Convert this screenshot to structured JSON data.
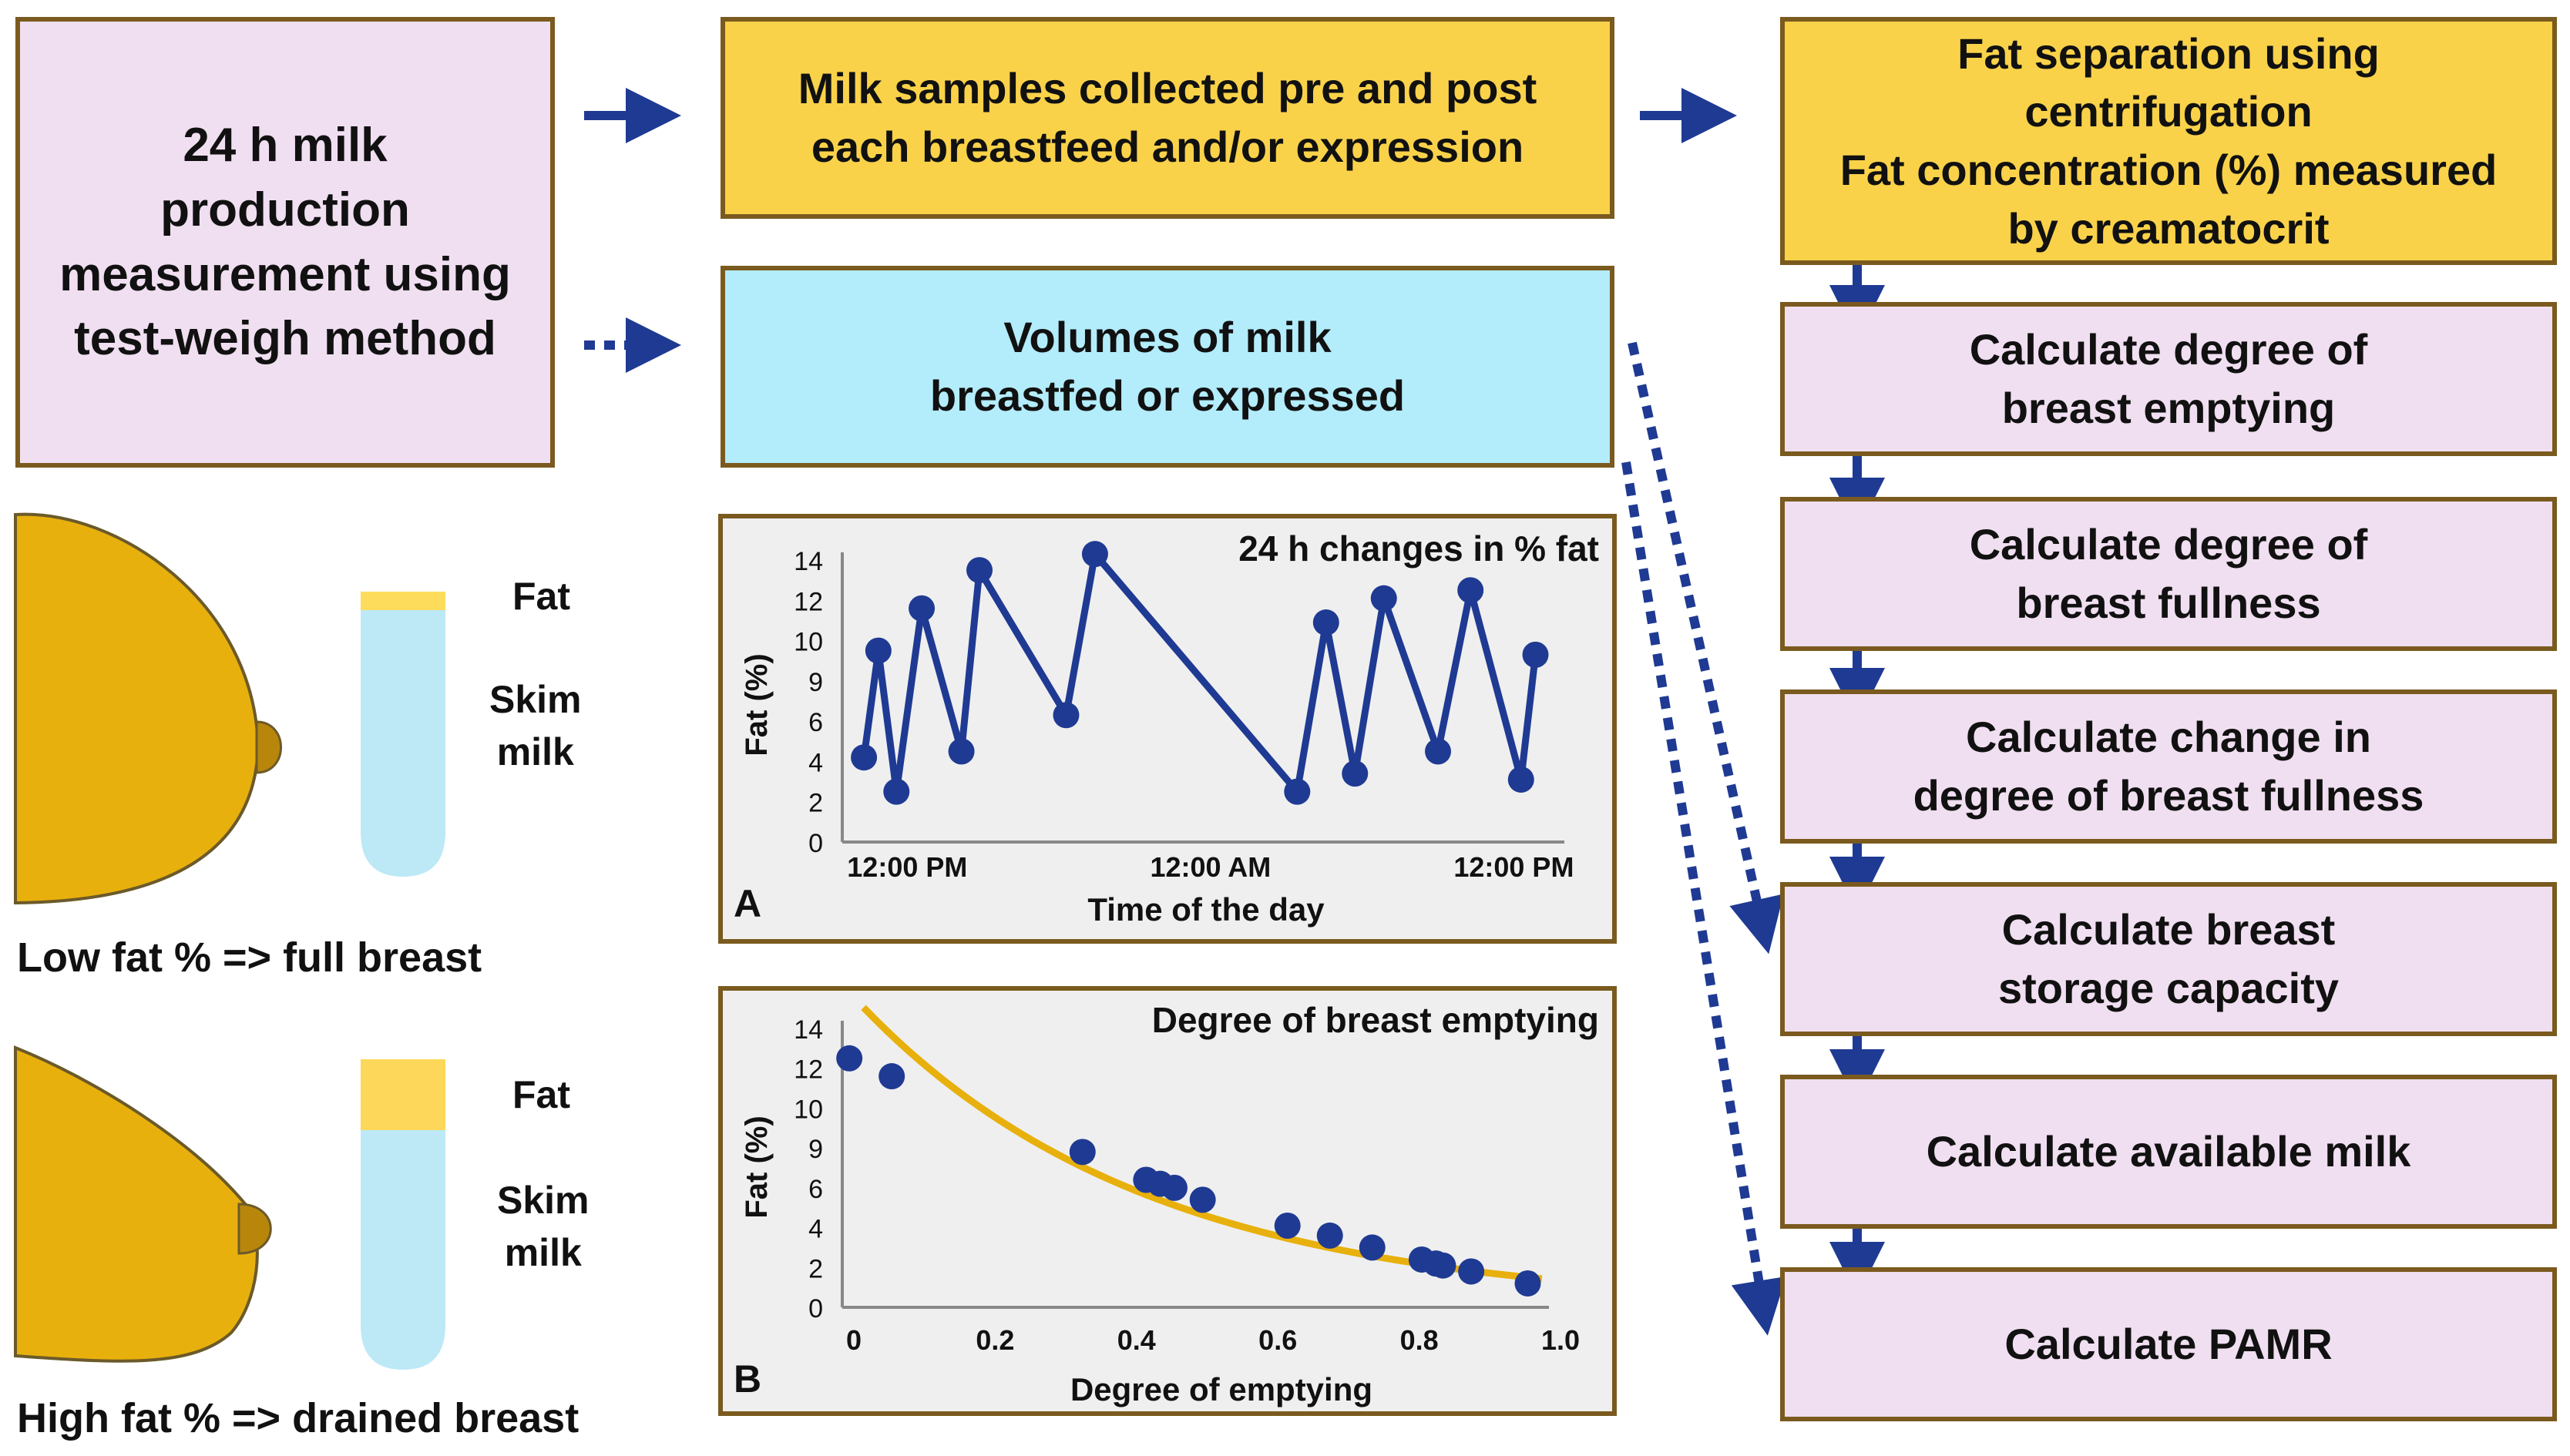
{
  "boxes": {
    "production": "24 h milk\nproduction\nmeasurement using\ntest-weigh method",
    "samples": "Milk samples collected pre and post\neach breastfeed and/or expression",
    "volumes": "Volumes of milk\nbreastfed or expressed",
    "fat_separation": "Fat separation using\ncentrifugation\nFat concentration (%) measured\nby creamatocrit"
  },
  "steps": [
    "Calculate degree of\nbreast emptying",
    "Calculate degree of\nbreast fullness",
    "Calculate change in\ndegree of breast fullness",
    "Calculate breast\nstorage capacity",
    "Calculate available milk",
    "Calculate PAMR"
  ],
  "illustrations": {
    "low": {
      "fat": "Fat",
      "skim": "Skim\nmilk",
      "caption": "Low fat % => full breast"
    },
    "high": {
      "fat": "Fat",
      "skim": "Skim\nmilk",
      "caption": "High fat % => drained breast"
    }
  },
  "colors": {
    "arrow": "#1f3a93",
    "breast": "#e8b00c",
    "nipple": "#b8860b",
    "fat_low": "#fddc5c",
    "fat_high": "#fdd75a",
    "skim": "#bde9f7"
  },
  "chart_data": [
    {
      "type": "line",
      "panel": "A",
      "title": "24 h changes in % fat",
      "xlabel": "Time of the day",
      "ylabel": "Fat (%)",
      "ylim": [
        0,
        14
      ],
      "yticks": [
        0,
        2,
        4,
        6,
        9,
        10,
        12,
        14
      ],
      "xticks": [
        "12:00 PM",
        "12:00 AM",
        "12:00 PM"
      ],
      "xlim": [
        0,
        100
      ],
      "xtick_positions": [
        9,
        51,
        93
      ],
      "x": [
        3,
        5,
        7.5,
        11,
        16.5,
        19,
        31,
        35,
        63,
        67,
        71,
        75,
        82.5,
        87,
        94,
        96
      ],
      "y": [
        4.2,
        9.5,
        2.5,
        11.6,
        4.5,
        13.5,
        6.3,
        14.3,
        2.5,
        10.9,
        3.4,
        12.1,
        4.5,
        12.5,
        3.1,
        9.3
      ]
    },
    {
      "type": "scatter",
      "panel": "B",
      "title": "Degree of breast emptying",
      "xlabel": "Degree of emptying",
      "ylabel": "Fat (%)",
      "xlim": [
        0,
        1.0
      ],
      "ylim": [
        0,
        14
      ],
      "yticks": [
        0,
        2,
        4,
        6,
        9,
        10,
        12,
        14
      ],
      "xticks": [
        "0",
        "0.2",
        "0.4",
        "0.6",
        "0.8",
        "1.0"
      ],
      "x": [
        0.01,
        0.07,
        0.34,
        0.43,
        0.45,
        0.47,
        0.51,
        0.63,
        0.69,
        0.75,
        0.82,
        0.84,
        0.85,
        0.89,
        0.97
      ],
      "y": [
        12.5,
        11.6,
        7.8,
        6.4,
        6.2,
        6.0,
        5.4,
        4.1,
        3.6,
        3.0,
        2.4,
        2.2,
        2.1,
        1.8,
        1.2
      ],
      "trend": {
        "type": "exponential",
        "a": 16.2,
        "b": 2.45,
        "x_from": 0.03,
        "x_to": 0.99
      }
    }
  ]
}
